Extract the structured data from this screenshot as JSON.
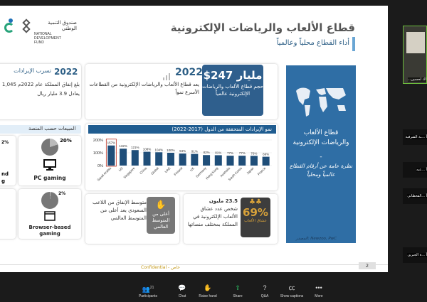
{
  "slide": {
    "title": "قطاع الألعاب والرياضات الإلكترونية",
    "subtitle": "أداء القطاع محلياً وعالمياً",
    "logo": {
      "arabic": "صندوق التنمية الوطني",
      "english_line1": "NATIONAL DEVELOPMENT",
      "english_line2": "FUND"
    },
    "blue_panel": {
      "title": "قطاع الألعاب والرياضات الإلكترونية",
      "dash": "-",
      "subtitle": "نظرة عامة عن أرقام القطاع عالمياً ومحلياً",
      "source": "المصدر: Newzoo, PwC"
    },
    "revenue_card": {
      "year": "2022",
      "heading": "تسرب الإيرادات",
      "text_line1": "بلغ إنفاق المملكة عام 2022م 1,045",
      "text_line2": "يعادل 3.9 مليار ريال"
    },
    "market_card": {
      "year": "2022",
      "amount": "$247 مليار",
      "box_text": "حجم قطاع الألعاب والرياضات الإلكترونية عالمياً",
      "text": "يعد قطاع الألعاب والرياضات الإلكترونية من القطاعات الأسرع نمواً"
    },
    "platform_section": {
      "heading": "المبيعات حسب المنصة",
      "cards": [
        {
          "percent": "20%",
          "label": "PC gaming"
        },
        {
          "percent": "2%",
          "label": "Browser-based gaming"
        }
      ],
      "left_partial": [
        {
          "percent": "2%",
          "label_line1": "nd",
          "label_line2": "g"
        },
        {
          "percent": "",
          "label_line1": "",
          "label_line2": ""
        }
      ]
    },
    "chart_title": "نمو الإيرادات المتحققة من الدول (2017-2022)",
    "spending_card": {
      "text": "متوسط الإنفاق من اللاعب السعودي يعد أعلى من المتوسط العالمي",
      "badge": "أعلى من المتوسط العالمي"
    },
    "gamers_card": {
      "number": "23.5 مليون",
      "text": "شخص عدد عشاق الألعاب الإلكترونية في المملكة بمختلف منصاتها",
      "percent": "69%",
      "percent_label": "عشاق الألعاب"
    },
    "footer": {
      "confidential": "Confidential - خاص",
      "page": "2"
    }
  },
  "chart_data": {
    "type": "bar",
    "title": "نمو الإيرادات المتحققة من الدول (2017-2022)",
    "categories": [
      "Saudi Arabia",
      "US",
      "Singapore",
      "China",
      "Global",
      "UAE",
      "Finland",
      "UK",
      "Germany",
      "Hong Kong",
      "Australia",
      "South Korea",
      "Japan",
      "France"
    ],
    "values": [
      157,
      132,
      121,
      108,
      104,
      100,
      94,
      91,
      82,
      81,
      77,
      77,
      76,
      69
    ],
    "data_labels": [
      "157%",
      "132%",
      "121%",
      "108%",
      "104%",
      "100%",
      "94%",
      "91%",
      "82%",
      "81%",
      "77%",
      "77%",
      "76%",
      "69%"
    ],
    "y_ticks": [
      "200%",
      "100%",
      "0%"
    ],
    "ylim": [
      0,
      200
    ],
    "highlight": "Saudi Arabia",
    "colors": {
      "bar": "#1f4e79",
      "highlight_border": "#c0392b"
    }
  },
  "participants": [
    {
      "name": "...اك لحسين"
    },
    {
      "name": "أ ...ـة الشرقية"
    },
    {
      "name": "أ ...عبه"
    },
    {
      "name": "أ ...القحطاني"
    },
    {
      "name": "أ ...ة الجبرين"
    }
  ],
  "toolbar": [
    {
      "label": "Participants",
      "count": "21",
      "icon": "people-icon"
    },
    {
      "label": "Chat",
      "icon": "chat-icon"
    },
    {
      "label": "Raise hand",
      "icon": "hand-icon"
    },
    {
      "label": "Share",
      "icon": "share-icon"
    },
    {
      "label": "Q&A",
      "icon": "qa-icon"
    },
    {
      "label": "Show captions",
      "icon": "captions-icon"
    },
    {
      "label": "More",
      "icon": "more-icon"
    }
  ]
}
